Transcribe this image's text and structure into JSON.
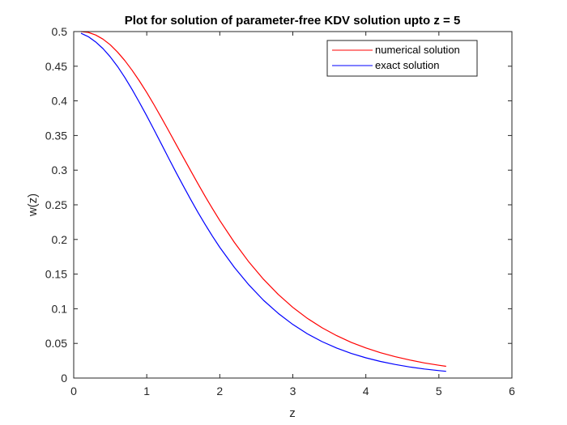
{
  "chart_data": {
    "type": "line",
    "title": "Plot for solution of parameter-free KDV solution upto z = 5",
    "xlabel": "z",
    "ylabel": "w(z)",
    "xlim": [
      0,
      6
    ],
    "ylim": [
      0,
      0.5
    ],
    "xticks": [
      "0",
      "1",
      "2",
      "3",
      "4",
      "5",
      "6"
    ],
    "yticks": [
      "0",
      "0.05",
      "0.1",
      "0.15",
      "0.2",
      "0.25",
      "0.3",
      "0.35",
      "0.4",
      "0.45",
      "0.5"
    ],
    "grid": false,
    "legend_position": "top-right",
    "series": [
      {
        "name": "numerical solution",
        "color": "#ff0000",
        "x": [
          0.1,
          0.2,
          0.3,
          0.4,
          0.5,
          0.6,
          0.7,
          0.8,
          0.9,
          1.0,
          1.1,
          1.2,
          1.3,
          1.4,
          1.5,
          1.6,
          1.7,
          1.8,
          1.9,
          2.0,
          2.2,
          2.4,
          2.6,
          2.8,
          3.0,
          3.2,
          3.4,
          3.6,
          3.8,
          4.0,
          4.2,
          4.4,
          4.6,
          4.8,
          5.0,
          5.1
        ],
        "y": [
          0.5,
          0.4988,
          0.4951,
          0.4891,
          0.4809,
          0.4705,
          0.4582,
          0.4442,
          0.4287,
          0.412,
          0.3943,
          0.3758,
          0.3569,
          0.3377,
          0.3185,
          0.2994,
          0.2806,
          0.2622,
          0.2445,
          0.2274,
          0.1957,
          0.1673,
          0.1424,
          0.1207,
          0.102,
          0.0861,
          0.0726,
          0.0612,
          0.0515,
          0.0434,
          0.0366,
          0.0308,
          0.026,
          0.0219,
          0.0184,
          0.0169
        ]
      },
      {
        "name": "exact solution",
        "color": "#0000ff",
        "x": [
          0.1,
          0.2,
          0.3,
          0.4,
          0.5,
          0.6,
          0.7,
          0.8,
          0.9,
          1.0,
          1.1,
          1.2,
          1.3,
          1.4,
          1.5,
          1.6,
          1.7,
          1.8,
          1.9,
          2.0,
          2.2,
          2.4,
          2.6,
          2.8,
          3.0,
          3.2,
          3.4,
          3.6,
          3.8,
          4.0,
          4.2,
          4.4,
          4.6,
          4.8,
          5.0,
          5.1
        ],
        "y": [
          0.4975,
          0.4926,
          0.4852,
          0.4755,
          0.4636,
          0.4496,
          0.4338,
          0.4164,
          0.3978,
          0.3783,
          0.3582,
          0.3378,
          0.3173,
          0.2971,
          0.2772,
          0.2579,
          0.2393,
          0.2216,
          0.2047,
          0.1887,
          0.1596,
          0.1342,
          0.1121,
          0.0933,
          0.0773,
          0.0638,
          0.0526,
          0.0433,
          0.0355,
          0.0292,
          0.0239,
          0.0196,
          0.016,
          0.0131,
          0.0107,
          0.0097
        ]
      }
    ]
  }
}
